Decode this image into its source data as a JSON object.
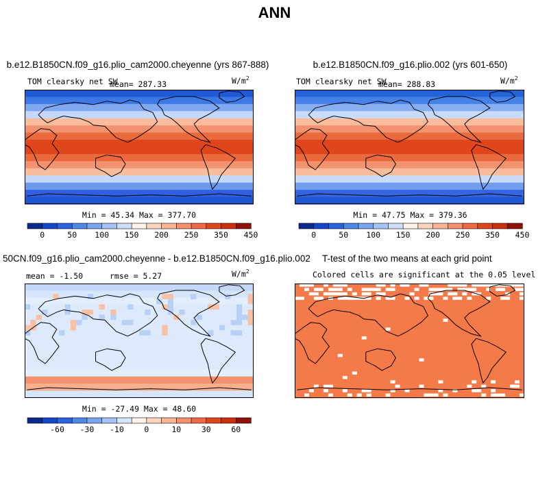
{
  "page": {
    "title": "ANN"
  },
  "chart_data": [
    {
      "type": "heatmap",
      "panel_title": "b.e12.B1850CN.f09_g16.plio_cam2000.cheyenne (yrs 867-888)",
      "variable": "TOM clearsky net SW",
      "mean_text": "mean= 287.33",
      "units_base": "W/m",
      "units_exp": "2",
      "minmax_text": "Min =  45.34 Max = 377.70",
      "colorbar_labels": [
        "0",
        "50",
        "100",
        "150",
        "200",
        "250",
        "350",
        "450"
      ],
      "colorbar_colors": [
        "#0a2a8c",
        "#1446c8",
        "#2a64dc",
        "#5088e6",
        "#7aa6ee",
        "#a6c4f4",
        "#cfdff9",
        "#fff4ea",
        "#fcd6bc",
        "#f9b494",
        "#f5906c",
        "#ee6a44",
        "#e0461c",
        "#c83010",
        "#8e1206"
      ],
      "latitude_bands": [
        "#1e5ad6",
        "#3c78e6",
        "#80a8f0",
        "#c4d8fb",
        "#f9bd9e",
        "#f2926e",
        "#ea6a3e",
        "#e0461c",
        "#e0461c",
        "#ea6a3e",
        "#f2926e",
        "#f9bd9e",
        "#c4d8fb",
        "#6e9aee",
        "#3060e0",
        "#1e56d4"
      ]
    },
    {
      "type": "heatmap",
      "panel_title": "b.e12.B1850CN.f09_g16.plio.002 (yrs 601-650)",
      "variable": "TOM clearsky net SW",
      "mean_text": "mean= 288.83",
      "units_base": "W/m",
      "units_exp": "2",
      "minmax_text": "Min =  47.75 Max = 379.36",
      "colorbar_labels": [
        "0",
        "50",
        "100",
        "150",
        "200",
        "250",
        "350",
        "450"
      ],
      "colorbar_colors": [
        "#0a2a8c",
        "#1446c8",
        "#2a64dc",
        "#5088e6",
        "#7aa6ee",
        "#a6c4f4",
        "#cfdff9",
        "#fff4ea",
        "#fcd6bc",
        "#f9b494",
        "#f5906c",
        "#ee6a44",
        "#e0461c",
        "#c83010",
        "#8e1206"
      ],
      "latitude_bands": [
        "#2462d8",
        "#4482e8",
        "#88aef2",
        "#c8dbfb",
        "#f9bd9e",
        "#f2926e",
        "#ea6a3e",
        "#e0461c",
        "#e0461c",
        "#ea6a3e",
        "#f2926e",
        "#f9bd9e",
        "#c8dbfb",
        "#729cee",
        "#3464e0",
        "#2058d4"
      ]
    },
    {
      "type": "heatmap",
      "panel_title": "50CN.f09_g16.plio_cam2000.cheyenne - b.e12.B1850CN.f09_g16.plio.002",
      "mean_text": "mean =  -1.50",
      "rmse_text": "rmse =   5.27",
      "units_base": "W/m",
      "units_exp": "2",
      "minmax_text": "Min = -27.49 Max =  48.60",
      "colorbar_labels": [
        "-60",
        "-30",
        "-10",
        "0",
        "10",
        "30",
        "60"
      ],
      "colorbar_colors": [
        "#0a2a8c",
        "#1446c8",
        "#2a64dc",
        "#5088e6",
        "#7aa6ee",
        "#a6c4f4",
        "#d6e6fb",
        "#fff2e6",
        "#fcd6bc",
        "#f9b494",
        "#f5906c",
        "#ee6a44",
        "#e0461c",
        "#c83010",
        "#8e1206"
      ],
      "latitude_bands": [
        "#c4d8fb",
        "#d6e6fb",
        "#e2eefc",
        "#dceafc",
        "#dceafc",
        "#dceafc",
        "#dceafc",
        "#dceafc",
        "#dceafc",
        "#dceafc",
        "#dceafc",
        "#dceafc",
        "#e6f0fc",
        "#f2926e",
        "#f5b090",
        "#d6e6fb"
      ]
    },
    {
      "type": "heatmap",
      "panel_title": "T-test of the two means at each grid point",
      "subtitle": "Colored cells are significant at the 0.05 level",
      "significant_color": "#f47a4a",
      "latitude_bands": [
        "#f47a4a",
        "#f47a4a",
        "#f47a4a",
        "#f47a4a",
        "#f47a4a",
        "#f47a4a",
        "#f47a4a",
        "#f47a4a",
        "#f47a4a",
        "#f47a4a",
        "#f47a4a",
        "#f47a4a",
        "#f47a4a",
        "#f47a4a",
        "#f47a4a",
        "#f47a4a"
      ]
    }
  ]
}
